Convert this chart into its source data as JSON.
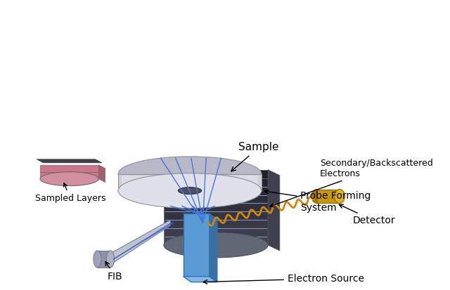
{
  "labels": {
    "electron_source": "Electron Source",
    "probe_forming": "Probe Forming\nSystem",
    "detector": "Detector",
    "sampled_layers": "Sampled Layers",
    "fib": "FIB",
    "secondary": "Secondary/Backscattered\nElectrons",
    "sample": "Sample"
  },
  "colors": {
    "background": "#ffffff",
    "electron_source_box": "#5b9bd5",
    "electron_source_box_dark": "#2e75b6",
    "beam_blue": "#4472c4",
    "lens_body": "#d0d0d8",
    "lens_highlight": "#f0f0f5",
    "lens_shadow": "#a0a0b0",
    "lens_hole": "#505060",
    "sample_dark": "#404048",
    "sample_line": "#6080b0",
    "sampled_pink": "#d08090",
    "sampled_dark": "#505055",
    "fib_cone": "#c0c0cc",
    "fib_cone_dark": "#7080a0",
    "detector_gold": "#c8960a",
    "detector_gold_dark": "#a07808",
    "wavy_orange": "#d4860a",
    "arrow_color": "#000000",
    "text_color": "#000000"
  },
  "figure_size": [
    6.4,
    4.13
  ],
  "dpi": 100
}
